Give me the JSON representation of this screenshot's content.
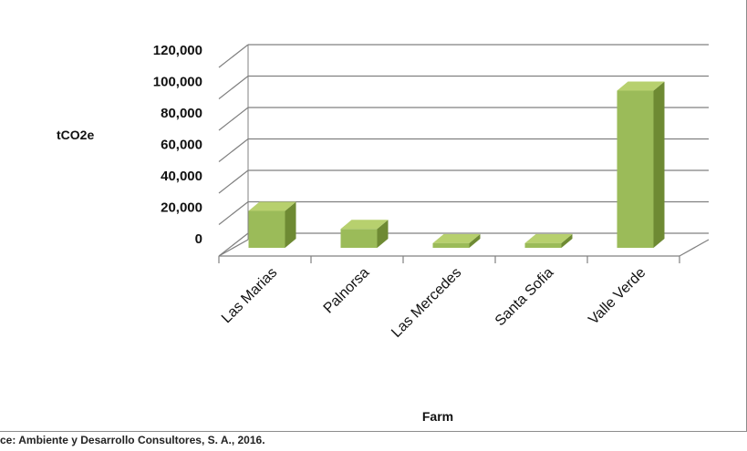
{
  "chart_data": {
    "type": "bar",
    "style": "3d-column",
    "categories": [
      "Las Marias",
      "Palnorsa",
      "Las Mercedes",
      "Santa Sofia",
      "Valle Verde"
    ],
    "values": [
      23500,
      12000,
      3000,
      3000,
      100000
    ],
    "ylim": [
      0,
      120000
    ],
    "yticks": [
      "0",
      "20,000",
      "40,000",
      "60,000",
      "80,000",
      "100,000",
      "120,000"
    ],
    "ylabel": "tCO2e",
    "xlabel": "Farm",
    "grid": true,
    "legend": "none",
    "colors": {
      "bar_front": "#9bbb59",
      "bar_side": "#6e8a33",
      "bar_top": "#b7d06e",
      "grid": "#808080"
    }
  },
  "source_note": "ce: Ambiente y Desarrollo Consultores, S. A., 2016."
}
